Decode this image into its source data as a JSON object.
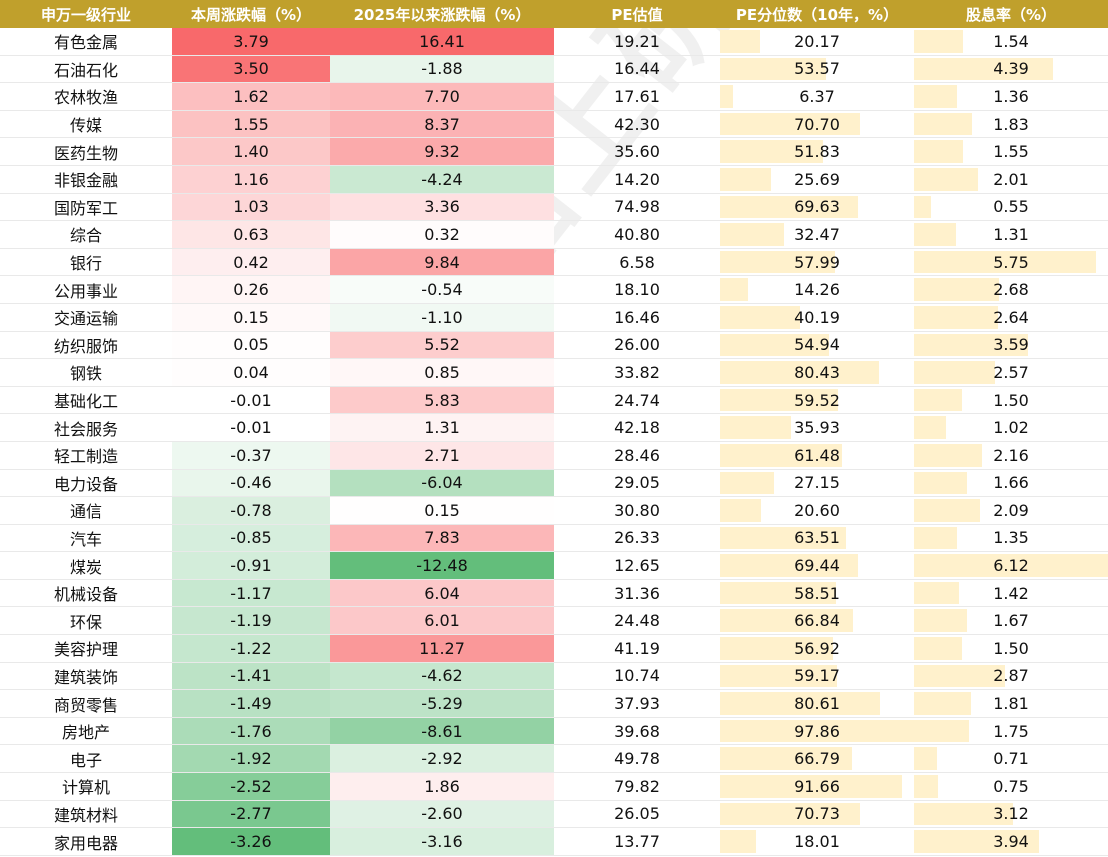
{
  "headers": [
    "申万一级行业",
    "本周涨跌幅（%）",
    "2025年以来涨跌幅（%）",
    "PE估值",
    "PE分位数（10年，%）",
    "股息率（%）"
  ],
  "watermark": "格上研究",
  "chart_data": {
    "type": "table",
    "rows": [
      {
        "industry": "有色金属",
        "week": "3.79",
        "ytd": "16.41",
        "pe": "19.21",
        "pe_pct": "20.17",
        "div": "1.54"
      },
      {
        "industry": "石油石化",
        "week": "3.50",
        "ytd": "-1.88",
        "pe": "16.44",
        "pe_pct": "53.57",
        "div": "4.39"
      },
      {
        "industry": "农林牧渔",
        "week": "1.62",
        "ytd": "7.70",
        "pe": "17.61",
        "pe_pct": "6.37",
        "div": "1.36"
      },
      {
        "industry": "传媒",
        "week": "1.55",
        "ytd": "8.37",
        "pe": "42.30",
        "pe_pct": "70.70",
        "div": "1.83"
      },
      {
        "industry": "医药生物",
        "week": "1.40",
        "ytd": "9.32",
        "pe": "35.60",
        "pe_pct": "51.83",
        "div": "1.55"
      },
      {
        "industry": "非银金融",
        "week": "1.16",
        "ytd": "-4.24",
        "pe": "14.20",
        "pe_pct": "25.69",
        "div": "2.01"
      },
      {
        "industry": "国防军工",
        "week": "1.03",
        "ytd": "3.36",
        "pe": "74.98",
        "pe_pct": "69.63",
        "div": "0.55"
      },
      {
        "industry": "综合",
        "week": "0.63",
        "ytd": "0.32",
        "pe": "40.80",
        "pe_pct": "32.47",
        "div": "1.31"
      },
      {
        "industry": "银行",
        "week": "0.42",
        "ytd": "9.84",
        "pe": "6.58",
        "pe_pct": "57.99",
        "div": "5.75"
      },
      {
        "industry": "公用事业",
        "week": "0.26",
        "ytd": "-0.54",
        "pe": "18.10",
        "pe_pct": "14.26",
        "div": "2.68"
      },
      {
        "industry": "交通运输",
        "week": "0.15",
        "ytd": "-1.10",
        "pe": "16.46",
        "pe_pct": "40.19",
        "div": "2.64"
      },
      {
        "industry": "纺织服饰",
        "week": "0.05",
        "ytd": "5.52",
        "pe": "26.00",
        "pe_pct": "54.94",
        "div": "3.59"
      },
      {
        "industry": "钢铁",
        "week": "0.04",
        "ytd": "0.85",
        "pe": "33.82",
        "pe_pct": "80.43",
        "div": "2.57"
      },
      {
        "industry": "基础化工",
        "week": "-0.01",
        "ytd": "5.83",
        "pe": "24.74",
        "pe_pct": "59.52",
        "div": "1.50"
      },
      {
        "industry": "社会服务",
        "week": "-0.01",
        "ytd": "1.31",
        "pe": "42.18",
        "pe_pct": "35.93",
        "div": "1.02"
      },
      {
        "industry": "轻工制造",
        "week": "-0.37",
        "ytd": "2.71",
        "pe": "28.46",
        "pe_pct": "61.48",
        "div": "2.16"
      },
      {
        "industry": "电力设备",
        "week": "-0.46",
        "ytd": "-6.04",
        "pe": "29.05",
        "pe_pct": "27.15",
        "div": "1.66"
      },
      {
        "industry": "通信",
        "week": "-0.78",
        "ytd": "0.15",
        "pe": "30.80",
        "pe_pct": "20.60",
        "div": "2.09"
      },
      {
        "industry": "汽车",
        "week": "-0.85",
        "ytd": "7.83",
        "pe": "26.33",
        "pe_pct": "63.51",
        "div": "1.35"
      },
      {
        "industry": "煤炭",
        "week": "-0.91",
        "ytd": "-12.48",
        "pe": "12.65",
        "pe_pct": "69.44",
        "div": "6.12"
      },
      {
        "industry": "机械设备",
        "week": "-1.17",
        "ytd": "6.04",
        "pe": "31.36",
        "pe_pct": "58.51",
        "div": "1.42"
      },
      {
        "industry": "环保",
        "week": "-1.19",
        "ytd": "6.01",
        "pe": "24.48",
        "pe_pct": "66.84",
        "div": "1.67"
      },
      {
        "industry": "美容护理",
        "week": "-1.22",
        "ytd": "11.27",
        "pe": "41.19",
        "pe_pct": "56.92",
        "div": "1.50"
      },
      {
        "industry": "建筑装饰",
        "week": "-1.41",
        "ytd": "-4.62",
        "pe": "10.74",
        "pe_pct": "59.17",
        "div": "2.87"
      },
      {
        "industry": "商贸零售",
        "week": "-1.49",
        "ytd": "-5.29",
        "pe": "37.93",
        "pe_pct": "80.61",
        "div": "1.81"
      },
      {
        "industry": "房地产",
        "week": "-1.76",
        "ytd": "-8.61",
        "pe": "39.68",
        "pe_pct": "97.86",
        "div": "1.75"
      },
      {
        "industry": "电子",
        "week": "-1.92",
        "ytd": "-2.92",
        "pe": "49.78",
        "pe_pct": "66.79",
        "div": "0.71"
      },
      {
        "industry": "计算机",
        "week": "-2.52",
        "ytd": "1.86",
        "pe": "79.82",
        "pe_pct": "91.66",
        "div": "0.75"
      },
      {
        "industry": "建筑材料",
        "week": "-2.77",
        "ytd": "-2.60",
        "pe": "26.05",
        "pe_pct": "70.73",
        "div": "3.12"
      },
      {
        "industry": "家用电器",
        "week": "-3.26",
        "ytd": "-3.16",
        "pe": "13.77",
        "pe_pct": "18.01",
        "div": "3.94"
      }
    ]
  },
  "colors": {
    "header_bg": "#c0a02c",
    "positive": "#f8696b",
    "negative": "#63be7b",
    "bar_fill": "#fff1cc"
  }
}
